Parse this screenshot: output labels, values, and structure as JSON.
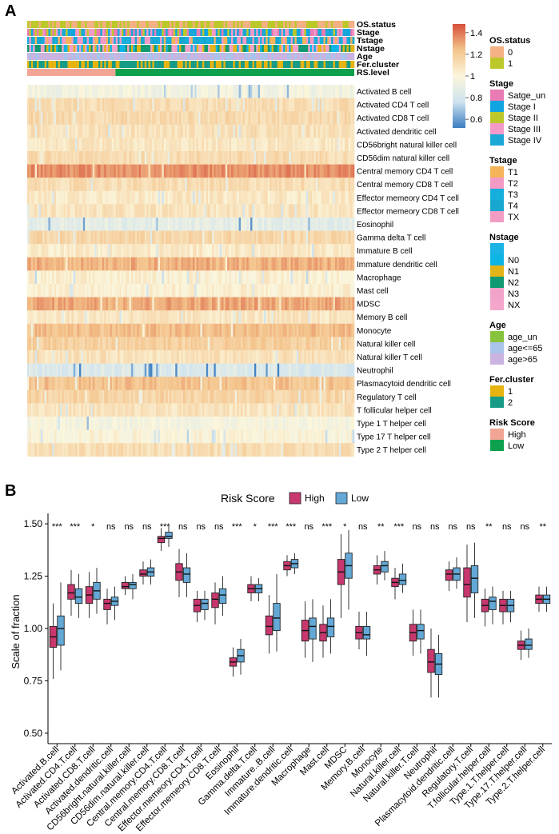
{
  "panel_a": {
    "label": "A",
    "annotation_rows": [
      "OS.status",
      "Stage",
      "Tstage",
      "Nstage",
      "Age",
      "Fer.cluster",
      "RS.level"
    ],
    "cell_rows": [
      "Activated B cell",
      "Activated CD4 T cell",
      "Activated CD8 T cell",
      "Activated dendritic cell",
      "CD56bright natural killer cell",
      "CD56dim natural killer cell",
      "Central memory CD4 T cell",
      "Central memory CD8 T cell",
      "Effector memeory CD4 T cell",
      "Effector memeory CD8 T cell",
      "Eosinophil",
      "Gamma delta T cell",
      "Immature  B cell",
      "Immature dendritic cell",
      "Macrophage",
      "Mast cell",
      "MDSC",
      "Memory B cell",
      "Monocyte",
      "Natural killer cell",
      "Natural killer T cell",
      "Neutrophil",
      "Plasmacytoid dendritic cell",
      "Regulatory T cell",
      "T follicular helper cell",
      "Type 1 T helper cell",
      "Type 17 T helper cell",
      "Type 2 T helper cell"
    ],
    "row_mean_levels": [
      0.95,
      1.12,
      1.14,
      1.1,
      1.07,
      1.13,
      1.35,
      1.12,
      1.07,
      1.09,
      0.88,
      1.15,
      1.06,
      1.28,
      1.03,
      1.03,
      1.3,
      1.08,
      1.24,
      1.18,
      1.1,
      0.83,
      1.23,
      1.16,
      1.09,
      0.97,
      1.01,
      1.12
    ],
    "rs_high_fraction": 0.27,
    "colorbar": {
      "ticks": [
        "1.4",
        "1.2",
        "1",
        "0.8",
        "0.6"
      ],
      "tick_values": [
        1.4,
        1.2,
        1.0,
        0.8,
        0.6
      ],
      "min": 0.52,
      "max": 1.48
    },
    "legend": [
      {
        "title": "OS.status",
        "items": [
          {
            "label": "0",
            "color": "#f4b183"
          },
          {
            "label": "1",
            "color": "#bcc82a"
          }
        ]
      },
      {
        "title": "Stage",
        "items": [
          {
            "label": "Satge_un",
            "color": "#e87bb4"
          },
          {
            "label": "Stage I",
            "color": "#10a5e0"
          },
          {
            "label": "Stage II",
            "color": "#bcc82a"
          },
          {
            "label": "Stage III",
            "color": "#f49ac8"
          },
          {
            "label": "Stage IV",
            "color": "#1ba8d6"
          }
        ]
      },
      {
        "title": "Tstage",
        "items": [
          {
            "label": "T1",
            "color": "#f5b35a"
          },
          {
            "label": "T2",
            "color": "#f39ac6"
          },
          {
            "label": "T3",
            "color": "#16aedb"
          },
          {
            "label": "T4",
            "color": "#17a7cf"
          },
          {
            "label": "TX",
            "color": "#f29cc4"
          }
        ]
      },
      {
        "title": "Nstage",
        "items": [
          {
            "label": "",
            "color": "#19b3e6"
          },
          {
            "label": "N0",
            "color": "#0fb4e7"
          },
          {
            "label": "N1",
            "color": "#e3b418"
          },
          {
            "label": "N2",
            "color": "#119a72"
          },
          {
            "label": "N3",
            "color": "#f2a3c9"
          },
          {
            "label": "NX",
            "color": "#f4a7cb"
          }
        ]
      },
      {
        "title": "Age",
        "items": [
          {
            "label": "age_un",
            "color": "#88c33e"
          },
          {
            "label": "age<=65",
            "color": "#a9c3ea"
          },
          {
            "label": "age>65",
            "color": "#cbb3df"
          }
        ]
      },
      {
        "title": "Fer.cluster",
        "items": [
          {
            "label": "1",
            "color": "#e6b30f"
          },
          {
            "label": "2",
            "color": "#169c86"
          }
        ]
      },
      {
        "title": "Risk Score",
        "items": [
          {
            "label": "High",
            "color": "#f2a595"
          },
          {
            "label": "Low",
            "color": "#0ea14d"
          }
        ]
      }
    ]
  },
  "panel_b": {
    "label": "B",
    "legend_title": "Risk Score",
    "legend_items": [
      {
        "label": "High",
        "color": "#c8386f"
      },
      {
        "label": "Low",
        "color": "#63a8d6"
      }
    ],
    "chart_data": {
      "type": "boxplot",
      "ylabel": "Scale of fraction",
      "ylim": [
        0.45,
        1.55
      ],
      "yticks": [
        0.5,
        0.75,
        1.0,
        1.25,
        1.5
      ],
      "ytick_labels": [
        "0.50",
        "0.75",
        "1.00",
        "1.25",
        "1.50"
      ],
      "categories": [
        "Activated.B.cell",
        "Activated.CD4.T.cell",
        "Activated.CD8.T.cell",
        "Activated.dendritic.cell",
        "CD56bright.natural.killer.cell",
        "CD56dim.natural.killer.cell",
        "Central.memory.CD4.T.cell",
        "Central.memory.CD8.T.cell",
        "Effector.memeory.CD4.T.cell",
        "Effector.memeory.CD8.T.cell",
        "Eosinophil",
        "Gamma.delta.T.cell",
        "Immature..B.cell",
        "Immature.dendritic.cell",
        "Macrophage",
        "Mast.cell",
        "MDSC",
        "Memory.B.cell",
        "Monocyte",
        "Natural.killer.cell",
        "Natural.killer.T.cell",
        "Neutrophil",
        "Plasmacytoid.dendritic.cell",
        "Regulatory.T.cell",
        "T.follicular.helper.cell",
        "Type.1.T.helper.cell",
        "Type.17.T.helper.cell",
        "Type.2.T.helper.cell"
      ],
      "significance": [
        "***",
        "***",
        "*",
        "ns",
        "ns",
        "ns",
        "***",
        "ns",
        "ns",
        "ns",
        "***",
        "*",
        "***",
        "***",
        "ns",
        "***",
        "*",
        "ns",
        "**",
        "***",
        "ns",
        "ns",
        "ns",
        "ns",
        "**",
        "ns",
        "ns",
        "**"
      ],
      "series": [
        {
          "name": "High",
          "boxes": [
            [
              0.76,
              0.91,
              0.96,
              1.01,
              1.12
            ],
            [
              1.06,
              1.14,
              1.17,
              1.21,
              1.28
            ],
            [
              1.05,
              1.12,
              1.16,
              1.2,
              1.27
            ],
            [
              1.02,
              1.09,
              1.12,
              1.14,
              1.19
            ],
            [
              1.16,
              1.19,
              1.2,
              1.22,
              1.25
            ],
            [
              1.21,
              1.25,
              1.26,
              1.28,
              1.32
            ],
            [
              1.37,
              1.41,
              1.43,
              1.44,
              1.48
            ],
            [
              1.15,
              1.23,
              1.27,
              1.31,
              1.38
            ],
            [
              1.03,
              1.08,
              1.11,
              1.14,
              1.18
            ],
            [
              1.02,
              1.1,
              1.14,
              1.17,
              1.22
            ],
            [
              0.77,
              0.82,
              0.84,
              0.86,
              0.91
            ],
            [
              1.13,
              1.17,
              1.19,
              1.21,
              1.25
            ],
            [
              0.88,
              0.97,
              1.01,
              1.06,
              1.16
            ],
            [
              1.25,
              1.28,
              1.3,
              1.32,
              1.35
            ],
            [
              0.86,
              0.94,
              0.99,
              1.04,
              1.13
            ],
            [
              0.86,
              0.94,
              0.98,
              1.02,
              1.11
            ],
            [
              1.05,
              1.21,
              1.27,
              1.33,
              1.45
            ],
            [
              0.9,
              0.95,
              0.98,
              1.01,
              1.08
            ],
            [
              1.21,
              1.26,
              1.28,
              1.3,
              1.35
            ],
            [
              1.14,
              1.2,
              1.22,
              1.24,
              1.29
            ],
            [
              0.87,
              0.94,
              0.98,
              1.02,
              1.09
            ],
            [
              0.67,
              0.79,
              0.84,
              0.9,
              1.0
            ],
            [
              1.18,
              1.23,
              1.26,
              1.28,
              1.32
            ],
            [
              1.03,
              1.15,
              1.21,
              1.29,
              1.4
            ],
            [
              1.01,
              1.08,
              1.11,
              1.14,
              1.19
            ],
            [
              1.02,
              1.08,
              1.11,
              1.14,
              1.18
            ],
            [
              0.85,
              0.9,
              0.92,
              0.94,
              0.99
            ],
            [
              1.08,
              1.12,
              1.14,
              1.16,
              1.2
            ]
          ]
        },
        {
          "name": "Low",
          "boxes": [
            [
              0.8,
              0.92,
              1.0,
              1.06,
              1.22
            ],
            [
              1.05,
              1.12,
              1.15,
              1.19,
              1.26
            ],
            [
              1.07,
              1.14,
              1.18,
              1.22,
              1.29
            ],
            [
              1.04,
              1.11,
              1.13,
              1.15,
              1.2
            ],
            [
              1.14,
              1.19,
              1.21,
              1.22,
              1.26
            ],
            [
              1.21,
              1.25,
              1.27,
              1.29,
              1.33
            ],
            [
              1.39,
              1.43,
              1.44,
              1.46,
              1.49
            ],
            [
              1.15,
              1.22,
              1.26,
              1.29,
              1.36
            ],
            [
              1.04,
              1.09,
              1.12,
              1.14,
              1.18
            ],
            [
              1.06,
              1.12,
              1.16,
              1.19,
              1.25
            ],
            [
              0.78,
              0.84,
              0.87,
              0.9,
              0.95
            ],
            [
              1.13,
              1.17,
              1.19,
              1.21,
              1.24
            ],
            [
              0.89,
              0.99,
              1.05,
              1.12,
              1.26
            ],
            [
              1.26,
              1.29,
              1.31,
              1.33,
              1.36
            ],
            [
              0.84,
              0.95,
              1.01,
              1.05,
              1.14
            ],
            [
              0.88,
              0.96,
              1.01,
              1.05,
              1.14
            ],
            [
              1.09,
              1.24,
              1.3,
              1.36,
              1.47
            ],
            [
              0.87,
              0.95,
              0.97,
              1.01,
              1.08
            ],
            [
              1.23,
              1.27,
              1.3,
              1.32,
              1.37
            ],
            [
              1.17,
              1.21,
              1.23,
              1.26,
              1.31
            ],
            [
              0.88,
              0.95,
              0.99,
              1.02,
              1.09
            ],
            [
              0.67,
              0.78,
              0.83,
              0.88,
              0.97
            ],
            [
              1.19,
              1.23,
              1.26,
              1.29,
              1.34
            ],
            [
              1.05,
              1.17,
              1.24,
              1.3,
              1.41
            ],
            [
              1.02,
              1.09,
              1.13,
              1.15,
              1.2
            ],
            [
              1.03,
              1.08,
              1.11,
              1.14,
              1.18
            ],
            [
              0.86,
              0.9,
              0.92,
              0.95,
              1.0
            ],
            [
              1.08,
              1.12,
              1.14,
              1.16,
              1.2
            ]
          ]
        }
      ]
    }
  }
}
